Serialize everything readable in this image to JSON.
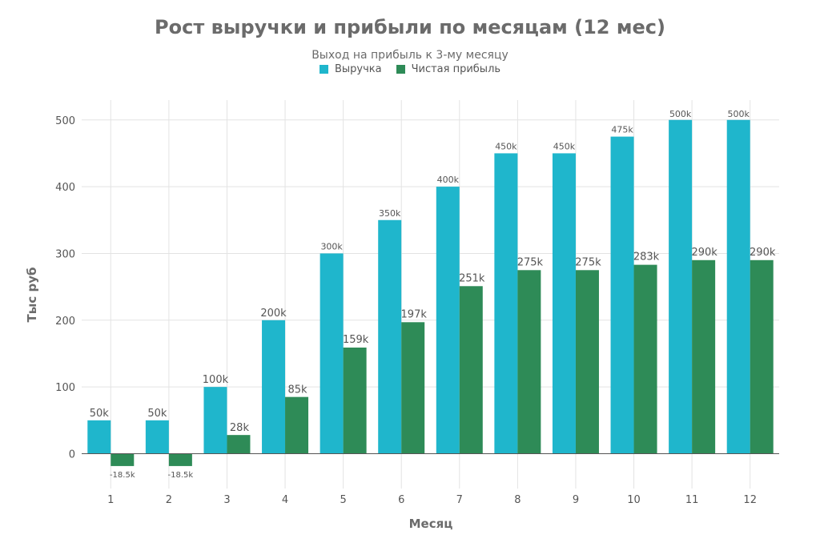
{
  "chart_data": {
    "type": "bar",
    "title": "Рост выручки и прибыли по месяцам (12 мес)",
    "subtitle": "Выход на прибыль к 3-му месяцу",
    "xlabel": "Месяц",
    "ylabel": "Тыс руб",
    "categories": [
      "1",
      "2",
      "3",
      "4",
      "5",
      "6",
      "7",
      "8",
      "9",
      "10",
      "11",
      "12"
    ],
    "ylim": [
      -40,
      540
    ],
    "yticks": [
      0,
      100,
      200,
      300,
      400,
      500
    ],
    "grid": true,
    "legend_position": "top-center",
    "series": [
      {
        "name": "Выручка",
        "color": "#1fb6cc",
        "values": [
          50,
          50,
          100,
          200,
          300,
          350,
          400,
          450,
          450,
          475,
          500,
          500
        ],
        "labels": [
          "50k",
          "50k",
          "100k",
          "200k",
          "300k",
          "350k",
          "400k",
          "450k",
          "450k",
          "475k",
          "500k",
          "500k"
        ]
      },
      {
        "name": "Чистая прибыль",
        "color": "#2e8b57",
        "values": [
          -18.5,
          -18.5,
          28,
          85,
          159,
          197,
          251,
          275,
          275,
          283,
          290,
          290
        ],
        "labels": [
          "-18.5k",
          "-18.5k",
          "28k",
          "85k",
          "159k",
          "197k",
          "251k",
          "275k",
          "275k",
          "283k",
          "290k",
          "290k"
        ]
      }
    ]
  }
}
